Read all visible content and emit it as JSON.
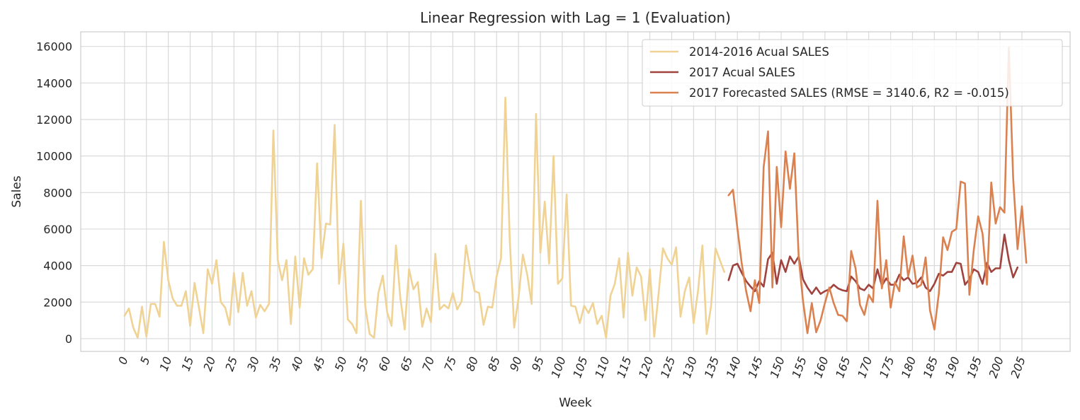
{
  "chart_data": {
    "type": "line",
    "title": "Linear Regression with Lag = 1 (Evaluation)",
    "xlabel": "Week",
    "ylabel": "Sales",
    "xlim": [
      -10,
      216
    ],
    "ylim": [
      -700,
      16800
    ],
    "xticks": [
      0,
      5,
      10,
      15,
      20,
      25,
      30,
      35,
      40,
      45,
      50,
      55,
      60,
      65,
      70,
      75,
      80,
      85,
      90,
      95,
      100,
      105,
      110,
      115,
      120,
      125,
      130,
      135,
      140,
      145,
      150,
      155,
      160,
      165,
      170,
      175,
      180,
      185,
      190,
      195,
      200,
      205
    ],
    "yticks": [
      0,
      2000,
      4000,
      6000,
      8000,
      10000,
      12000,
      14000,
      16000
    ],
    "grid": true,
    "legend_position": "top-right",
    "series": [
      {
        "name": "2014-2016 Acual SALES",
        "color": "#f0d394",
        "x_start": 0,
        "values": [
          1250,
          1650,
          600,
          50,
          1750,
          100,
          1900,
          1900,
          1200,
          5300,
          3200,
          2200,
          1800,
          1800,
          2600,
          700,
          3050,
          1700,
          300,
          3800,
          3000,
          4300,
          2000,
          1700,
          750,
          3600,
          1450,
          3600,
          1800,
          2600,
          1150,
          1850,
          1500,
          1900,
          11400,
          4300,
          3200,
          4300,
          800,
          4500,
          1700,
          4400,
          3500,
          3800,
          9600,
          4400,
          6300,
          6250,
          11700,
          3000,
          5200,
          1050,
          800,
          300,
          7550,
          1750,
          250,
          50,
          2500,
          3450,
          1450,
          700,
          5100,
          2250,
          500,
          3800,
          2700,
          3100,
          650,
          1650,
          900,
          4650,
          1600,
          1850,
          1650,
          2500,
          1600,
          2050,
          5100,
          3700,
          2600,
          2500,
          750,
          1750,
          1700,
          3400,
          4400,
          13200,
          5400,
          600,
          2200,
          4600,
          3500,
          1900,
          12300,
          4700,
          7500,
          4100,
          10000,
          3000,
          3300,
          7900,
          1800,
          1750,
          850,
          1800,
          1400,
          1950,
          800,
          1250,
          50,
          2350,
          3000,
          4400,
          1150,
          4700,
          2350,
          3900,
          3400,
          1000,
          3800,
          100,
          2450,
          4950,
          4400,
          4050,
          5000,
          1200,
          2600,
          3350,
          850,
          2600,
          5100,
          250,
          1800,
          4950,
          4300,
          3650
        ]
      },
      {
        "name": "2017 Acual SALES",
        "color": "#a0423d",
        "x_start": 138,
        "values": [
          3200,
          4000,
          4100,
          3600,
          3150,
          2850,
          2600,
          3150,
          2850,
          4350,
          4700,
          3000,
          4300,
          3650,
          4500,
          4100,
          4500,
          3250,
          2800,
          2450,
          2800,
          2450,
          2600,
          2700,
          2950,
          2750,
          2650,
          2600,
          3400,
          3150,
          2750,
          2650,
          2950,
          2750,
          3800,
          2900,
          3300,
          2950,
          2950,
          3500,
          3200,
          3350,
          3000,
          3050,
          3350,
          2800,
          2600,
          3000,
          3550,
          3450,
          3650,
          3650,
          4150,
          4100,
          2950,
          3250,
          3800,
          3650,
          3000,
          4150,
          3650,
          3850,
          3850,
          5700,
          4300,
          3350,
          3900
        ]
      },
      {
        "name": "2017 Forecasted SALES (RMSE = 3140.6, R2 = -0.015)",
        "color": "#db8150",
        "x_start": 138,
        "values": [
          7850,
          8150,
          6050,
          4100,
          2600,
          1500,
          3200,
          1950,
          9400,
          11350,
          2800,
          9400,
          6100,
          10250,
          8200,
          10150,
          4450,
          2050,
          300,
          1950,
          350,
          1000,
          1950,
          2800,
          1950,
          1300,
          1250,
          950,
          4800,
          3850,
          1850,
          1300,
          2400,
          2000,
          7550,
          2750,
          4300,
          1700,
          3100,
          2600,
          5600,
          3400,
          4550,
          2800,
          2950,
          4450,
          1550,
          500,
          2450,
          5550,
          4850,
          5850,
          6000,
          8600,
          8500,
          2400,
          4850,
          6700,
          5750,
          2950,
          8550,
          6300,
          7200,
          6900,
          15950,
          8800,
          4900,
          7250,
          4150
        ]
      }
    ]
  }
}
